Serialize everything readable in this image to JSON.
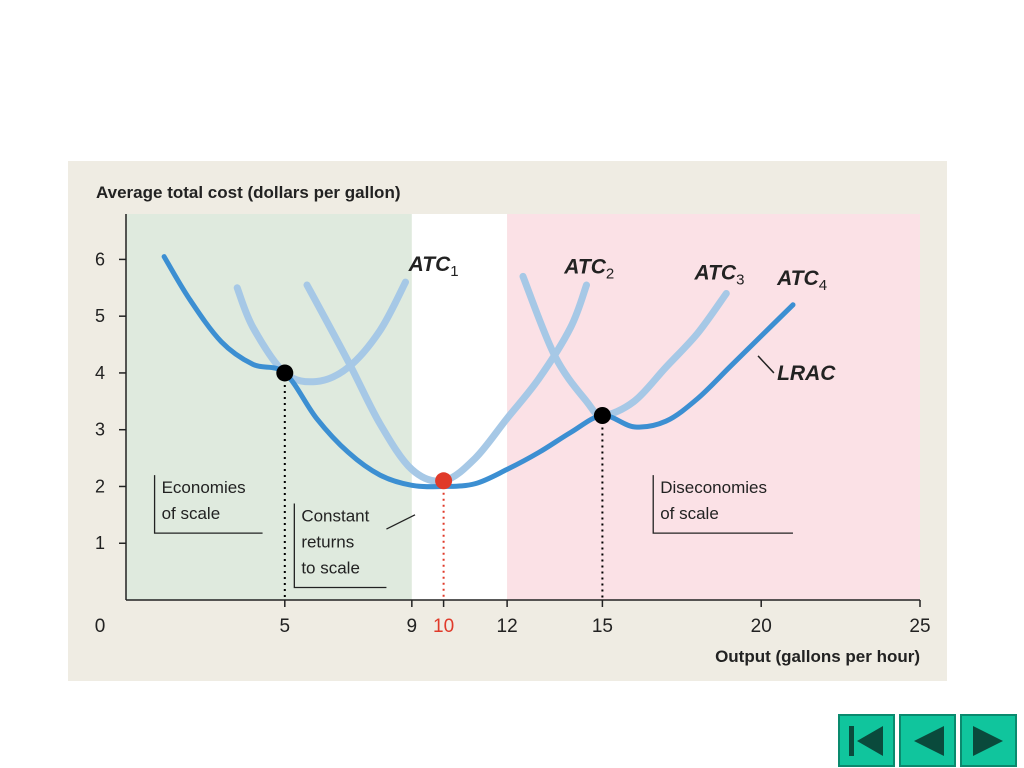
{
  "chart_data": {
    "type": "line",
    "ylabel": "Average total cost (dollars per gallon)",
    "xlabel": "Output (gallons per hour)",
    "xlim": [
      0,
      25
    ],
    "ylim": [
      0,
      6.8
    ],
    "x_ticks": [
      {
        "value": 0,
        "label": "0"
      },
      {
        "value": 5,
        "label": "5"
      },
      {
        "value": 9,
        "label": "9"
      },
      {
        "value": 10,
        "label": "10",
        "color": "#e03a2a"
      },
      {
        "value": 12,
        "label": "12"
      },
      {
        "value": 15,
        "label": "15"
      },
      {
        "value": 20,
        "label": "20"
      },
      {
        "value": 25,
        "label": "25"
      }
    ],
    "y_ticks": [
      {
        "value": 1,
        "label": "1"
      },
      {
        "value": 2,
        "label": "2"
      },
      {
        "value": 3,
        "label": "3"
      },
      {
        "value": 4,
        "label": "4"
      },
      {
        "value": 5,
        "label": "5"
      },
      {
        "value": 6,
        "label": "6"
      }
    ],
    "regions": [
      {
        "name": "economies",
        "from": 0,
        "to": 9,
        "color": "#dfeade"
      },
      {
        "name": "constant",
        "from": 9,
        "to": 12,
        "color": "#ffffff"
      },
      {
        "name": "diseconomies",
        "from": 12,
        "to": 25,
        "color": "#fbe1e6"
      }
    ],
    "series": [
      {
        "name": "ATC",
        "subscript": "1",
        "color": "#a6c8e6",
        "width": 7,
        "points": [
          [
            3.5,
            5.5
          ],
          [
            4,
            4.8
          ],
          [
            5,
            4.0
          ],
          [
            6,
            3.85
          ],
          [
            7,
            4.1
          ],
          [
            8,
            4.75
          ],
          [
            8.8,
            5.6
          ]
        ]
      },
      {
        "name": "ATC",
        "subscript": "2",
        "color": "#a6c8e6",
        "width": 7,
        "points": [
          [
            5.7,
            5.55
          ],
          [
            7,
            4.2
          ],
          [
            8,
            3.1
          ],
          [
            9,
            2.3
          ],
          [
            10,
            2.1
          ],
          [
            11,
            2.5
          ],
          [
            12,
            3.2
          ],
          [
            13,
            3.9
          ],
          [
            14,
            4.8
          ],
          [
            14.5,
            5.55
          ]
        ]
      },
      {
        "name": "ATC",
        "subscript": "3",
        "color": "#a6c8e6",
        "width": 7,
        "points": [
          [
            12.5,
            5.7
          ],
          [
            13.5,
            4.3
          ],
          [
            14.5,
            3.5
          ],
          [
            15,
            3.25
          ],
          [
            16,
            3.5
          ],
          [
            17,
            4.1
          ],
          [
            18,
            4.7
          ],
          [
            18.9,
            5.4
          ]
        ]
      },
      {
        "name": "ATC",
        "subscript": "4",
        "color": "#3c8fd2",
        "width": 5,
        "points": [
          [
            1.2,
            6.05
          ],
          [
            2,
            5.3
          ],
          [
            3,
            4.55
          ],
          [
            4,
            4.15
          ],
          [
            5,
            4.0
          ],
          [
            6,
            3.2
          ],
          [
            7,
            2.6
          ],
          [
            8,
            2.2
          ],
          [
            9,
            2.02
          ],
          [
            10,
            2.0
          ],
          [
            11,
            2.05
          ],
          [
            12,
            2.3
          ],
          [
            13,
            2.6
          ],
          [
            14,
            2.95
          ],
          [
            15,
            3.25
          ],
          [
            16,
            3.05
          ],
          [
            17,
            3.15
          ],
          [
            18,
            3.55
          ],
          [
            19,
            4.1
          ],
          [
            20,
            4.65
          ],
          [
            21,
            5.2
          ]
        ]
      }
    ],
    "series_labels": [
      {
        "text": "ATC",
        "sub": "1",
        "x": 8.9,
        "y": 5.8
      },
      {
        "text": "ATC",
        "sub": "2",
        "x": 13.8,
        "y": 5.75
      },
      {
        "text": "ATC",
        "sub": "3",
        "x": 17.9,
        "y": 5.65
      },
      {
        "text": "ATC",
        "sub": "4",
        "x": 20.5,
        "y": 5.55
      }
    ],
    "lrac_label": {
      "text": "LRAC",
      "x": 20.5,
      "y": 4.0,
      "pointer": [
        [
          19.9,
          4.3
        ],
        [
          20.4,
          4.0
        ]
      ]
    },
    "key_points": [
      {
        "x": 5,
        "y": 4,
        "color": "#000000"
      },
      {
        "x": 10,
        "y": 2.1,
        "color": "#e03a2a"
      },
      {
        "x": 15,
        "y": 3.25,
        "color": "#000000"
      }
    ],
    "drop_lines": [
      {
        "x": 5,
        "y": 4,
        "color": "#000000"
      },
      {
        "x": 10,
        "y": 2.1,
        "color": "#e03a2a"
      },
      {
        "x": 15,
        "y": 3.25,
        "color": "#000000"
      }
    ],
    "annotations": [
      {
        "lines": [
          "Economies",
          "of scale"
        ],
        "x": 0.9,
        "y": 2.2,
        "bracket_to": 4.3
      },
      {
        "lines": [
          "Constant",
          "returns",
          "to scale"
        ],
        "x": 5.3,
        "y": 1.7,
        "bracket_to": 8.2,
        "pointer": [
          [
            8.2,
            1.25
          ],
          [
            9.1,
            1.5
          ]
        ]
      },
      {
        "lines": [
          "Diseconomies",
          "of scale"
        ],
        "x": 16.6,
        "y": 2.2,
        "bracket_to": 21.0
      }
    ],
    "grid": false
  },
  "nav": {
    "first_icon": "first-page-icon",
    "prev_icon": "previous-icon",
    "next_icon": "next-icon"
  }
}
